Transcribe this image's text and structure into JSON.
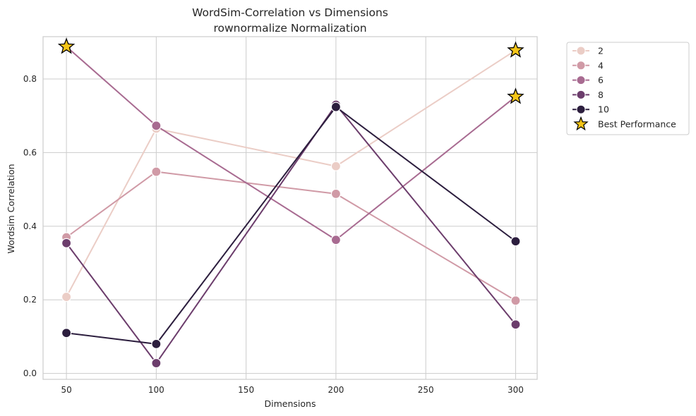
{
  "chart_data": {
    "type": "line",
    "title": "WordSim-Correlation vs Dimensions",
    "subtitle": "rownormalize Normalization",
    "xlabel": "Dimensions",
    "ylabel": "Wordsim Correlation",
    "xlim": [
      37,
      312
    ],
    "ylim": [
      -0.016,
      0.915
    ],
    "xticks": [
      50,
      100,
      150,
      200,
      250,
      300
    ],
    "yticks": [
      0.0,
      0.2,
      0.4,
      0.6,
      0.8
    ],
    "ytick_labels": [
      "0.0",
      "0.2",
      "0.4",
      "0.6",
      "0.8"
    ],
    "grid": true,
    "legend_position": "outside-top-right",
    "x": [
      50,
      100,
      200,
      300
    ],
    "series": [
      {
        "name": "2",
        "color": "#ebcdc6",
        "values": [
          0.208,
          0.665,
          0.563,
          0.878
        ]
      },
      {
        "name": "4",
        "color": "#d09aa6",
        "values": [
          0.37,
          0.548,
          0.488,
          0.198
        ]
      },
      {
        "name": "6",
        "color": "#a86b91",
        "values": [
          0.888,
          0.673,
          0.363,
          0.752
        ]
      },
      {
        "name": "8",
        "color": "#6c3d6c",
        "values": [
          0.354,
          0.028,
          0.73,
          0.133
        ]
      },
      {
        "name": "10",
        "color": "#2c1e3e",
        "values": [
          0.11,
          0.08,
          0.724,
          0.359
        ]
      }
    ],
    "best_performance": {
      "label": "Best Performance",
      "color": "#f5c518",
      "points": [
        {
          "x": 50,
          "y": 0.888
        },
        {
          "x": 300,
          "y": 0.878
        },
        {
          "x": 300,
          "y": 0.752
        }
      ]
    }
  }
}
